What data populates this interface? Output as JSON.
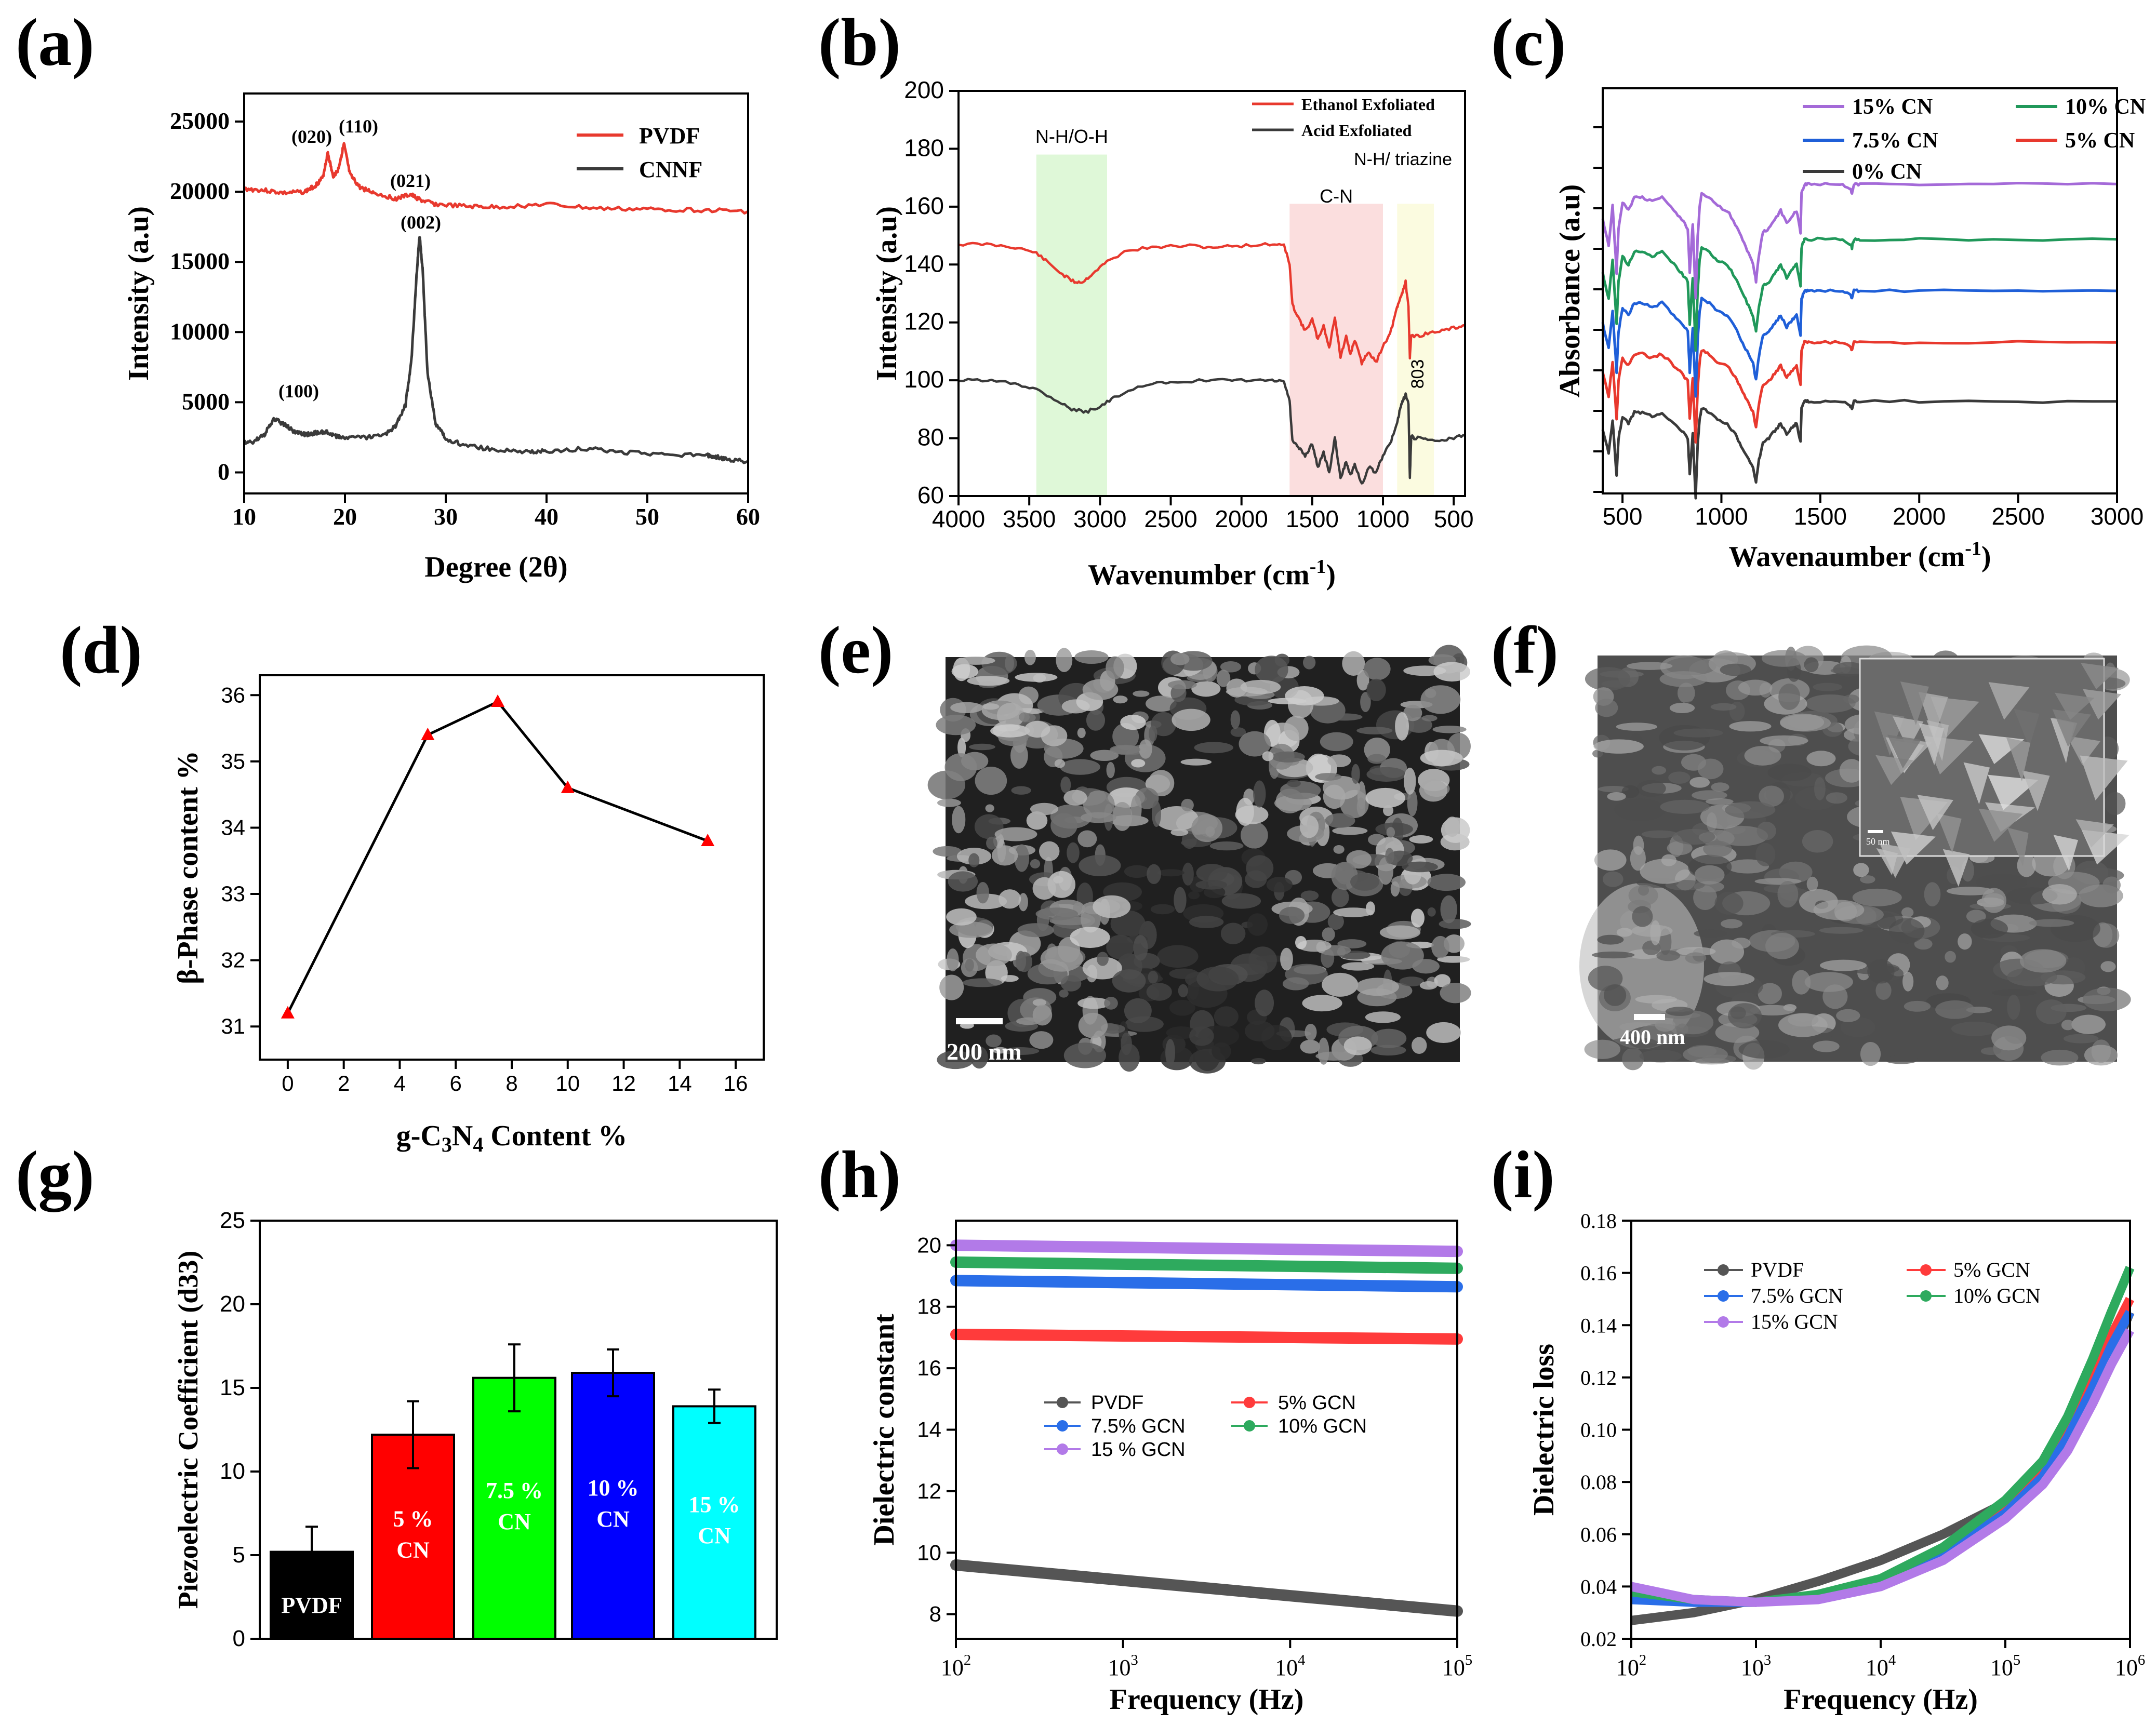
{
  "chart_data": [
    {
      "panel": "(a)",
      "type": "line",
      "xlabel": "Degree (2θ)",
      "ylabel": "Intensity (a.u)",
      "xlim": [
        10,
        60
      ],
      "ylim": [
        -1500,
        27000
      ],
      "xticks": [
        "10",
        "20",
        "30",
        "40",
        "50",
        "60"
      ],
      "yticks": [
        "0",
        "5000",
        "10000",
        "15000",
        "20000",
        "25000"
      ],
      "series": [
        {
          "name": "PVDF",
          "color": "#e8392e",
          "x": [
            10,
            12,
            14,
            16,
            17,
            17.8,
            18.3,
            18.8,
            19.3,
            19.9,
            20.5,
            21.5,
            23,
            25,
            26.5,
            27.5,
            29,
            32,
            35,
            40,
            45,
            50,
            55,
            60
          ],
          "y": [
            20200,
            20100,
            19900,
            20000,
            20400,
            21000,
            22800,
            21100,
            21500,
            23400,
            21200,
            20300,
            19900,
            19500,
            19800,
            19400,
            19100,
            18950,
            18900,
            19100,
            18800,
            18750,
            18700,
            18600
          ]
        },
        {
          "name": "CNNF",
          "color": "#3a3a3a",
          "x": [
            10,
            11,
            12,
            13,
            14,
            15,
            16,
            17,
            18,
            19,
            20,
            22,
            24,
            25,
            26,
            26.6,
            27.1,
            27.4,
            27.7,
            28.2,
            29,
            30,
            32,
            35,
            38,
            40,
            44,
            48,
            52,
            56,
            57,
            58,
            60
          ],
          "y": [
            2100,
            2200,
            2700,
            3800,
            3400,
            2900,
            2700,
            2800,
            2900,
            2600,
            2500,
            2500,
            2700,
            3300,
            4800,
            8000,
            14000,
            16900,
            14500,
            7000,
            3500,
            2400,
            1900,
            1600,
            1500,
            1500,
            1700,
            1400,
            1300,
            1200,
            1100,
            900,
            800
          ]
        }
      ],
      "annotations": [
        "(020)",
        "(110)",
        "(021)",
        "(002)",
        "(100)"
      ]
    },
    {
      "panel": "(b)",
      "type": "line",
      "xlabel": "Wavenumber (cm-1)",
      "ylabel": "Intensity (a.u)",
      "xlim": [
        4000,
        420
      ],
      "ylim": [
        60,
        200
      ],
      "xticks": [
        "4000",
        "3500",
        "3000",
        "2500",
        "2000",
        "1500",
        "1000",
        "500"
      ],
      "yticks": [
        "60",
        "80",
        "100",
        "120",
        "140",
        "160",
        "180",
        "200"
      ],
      "series": [
        {
          "name": "Ethanol Exfoliated",
          "color": "#e8392e",
          "x": [
            4000,
            3800,
            3600,
            3450,
            3350,
            3250,
            3180,
            3120,
            3050,
            2950,
            2800,
            2600,
            2400,
            2200,
            2000,
            1800,
            1700,
            1660,
            1640,
            1600,
            1550,
            1500,
            1460,
            1420,
            1380,
            1340,
            1300,
            1260,
            1230,
            1200,
            1150,
            1100,
            1050,
            1000,
            950,
            900,
            880,
            860,
            840,
            820,
            810,
            800,
            780,
            700,
            600,
            500,
            420
          ],
          "y": [
            147,
            147,
            146,
            144,
            140,
            136,
            134,
            134,
            137,
            141,
            145,
            146,
            146.5,
            146,
            146.5,
            147,
            147,
            140,
            126,
            122,
            117,
            121,
            114,
            119,
            111,
            122,
            108,
            115,
            109,
            114,
            106,
            110,
            106,
            112,
            116,
            125,
            128,
            131,
            134,
            125,
            108,
            116,
            115,
            116,
            117,
            118,
            119
          ]
        },
        {
          "name": "Acid Exfoliated",
          "color": "#3a3a3a",
          "x": [
            4000,
            3800,
            3600,
            3450,
            3300,
            3200,
            3100,
            3000,
            2900,
            2700,
            2500,
            2200,
            2000,
            1800,
            1700,
            1660,
            1640,
            1600,
            1550,
            1500,
            1460,
            1420,
            1380,
            1340,
            1300,
            1260,
            1230,
            1200,
            1150,
            1100,
            1050,
            1000,
            950,
            900,
            880,
            860,
            840,
            820,
            810,
            800,
            780,
            700,
            600,
            500,
            420
          ],
          "y": [
            100,
            100,
            99,
            97,
            93,
            90,
            89,
            91,
            94,
            98,
            99.5,
            100,
            100,
            100,
            99.5,
            93,
            79,
            77,
            74,
            78,
            70,
            75,
            68,
            80,
            66,
            72,
            67,
            71,
            64,
            70,
            68,
            74,
            78,
            85,
            90,
            93,
            95,
            92,
            66,
            81,
            80,
            80,
            79,
            80,
            81
          ]
        }
      ],
      "annotations": [
        "N-H/O-H",
        "C-N",
        "N-H/ triazine",
        "803"
      ]
    },
    {
      "panel": "(c)",
      "type": "line",
      "xlabel": "Wavenaumber (cm-1)",
      "ylabel": "Absorbance (a.u)",
      "xlim": [
        400,
        3000
      ],
      "ylim": [
        0,
        11
      ],
      "xticks": [
        "500",
        "1000",
        "1500",
        "2000",
        "2500",
        "3000"
      ],
      "series": [
        {
          "name": "0% CN",
          "color": "#3a3a3a",
          "offset": 2.5
        },
        {
          "name": "5% CN",
          "color": "#e8392e",
          "offset": 4.1
        },
        {
          "name": "7.5% CN",
          "color": "#1f5fd8",
          "offset": 5.5
        },
        {
          "name": "10% CN",
          "color": "#20985a",
          "offset": 6.9
        },
        {
          "name": "15% CN",
          "color": "#a46ad8",
          "offset": 8.4
        }
      ],
      "profile_x": [
        400,
        430,
        450,
        470,
        480,
        500,
        530,
        560,
        600,
        650,
        700,
        760,
        800,
        830,
        840,
        855,
        870,
        880,
        890,
        900,
        940,
        980,
        1030,
        1070,
        1100,
        1130,
        1160,
        1175,
        1190,
        1210,
        1240,
        1270,
        1300,
        1330,
        1360,
        1380,
        1400,
        1405,
        1420,
        1440,
        1500,
        1600,
        1650,
        1660,
        1670,
        1700,
        2000,
        2500,
        3000
      ],
      "profile_y": [
        -0.8,
        -1.4,
        -0.5,
        -2.0,
        -1.0,
        -0.4,
        -0.6,
        -0.3,
        -0.3,
        -0.4,
        -0.3,
        -0.6,
        -0.8,
        -1.0,
        -2.0,
        -0.9,
        -2.6,
        -1.2,
        -0.5,
        -0.2,
        -0.3,
        -0.5,
        -0.6,
        -0.9,
        -1.2,
        -1.5,
        -1.8,
        -2.2,
        -1.6,
        -1.1,
        -1.0,
        -0.8,
        -0.6,
        -0.9,
        -0.7,
        -0.6,
        -1.1,
        -0.2,
        0.0,
        0.0,
        0.0,
        0.0,
        -0.1,
        -0.2,
        0.0,
        0.0,
        0.0,
        0.0,
        0.0
      ]
    },
    {
      "panel": "(d)",
      "type": "line",
      "xlabel": "g-C3N4 Content %",
      "ylabel": "β-Phase content %",
      "xlim": [
        -1,
        17
      ],
      "ylim": [
        30.5,
        36.3
      ],
      "xticks": [
        "0",
        "2",
        "4",
        "6",
        "8",
        "10",
        "12",
        "14",
        "16"
      ],
      "yticks": [
        "31",
        "32",
        "33",
        "34",
        "35",
        "36"
      ],
      "x": [
        0,
        5,
        7.5,
        10,
        15
      ],
      "values": [
        31.2,
        35.4,
        35.9,
        34.6,
        33.8
      ]
    },
    {
      "panel": "(g)",
      "type": "bar",
      "ylabel": "Piezoelectric Coefficient (d33)",
      "ylim": [
        0,
        25
      ],
      "yticks": [
        "0",
        "5",
        "10",
        "15",
        "20",
        "25"
      ],
      "categories": [
        "PVDF",
        "5 % CN",
        "7.5 % CN",
        "10 % CN",
        "15 % CN"
      ],
      "values": [
        5.2,
        12.2,
        15.6,
        15.9,
        13.9
      ],
      "errors": [
        1.5,
        2.0,
        2.0,
        1.4,
        1.0
      ],
      "colors": [
        "#000000",
        "#ff0000",
        "#00ff00",
        "#0000ff",
        "#00ffff"
      ]
    },
    {
      "panel": "(h)",
      "type": "scatter",
      "xlabel": "Frequency (Hz)",
      "ylabel": "Dielectric constant",
      "xlim": [
        100,
        100000
      ],
      "ylim": [
        7.2,
        20.8
      ],
      "yticks": [
        "8",
        "10",
        "12",
        "14",
        "16",
        "18",
        "20"
      ],
      "series": [
        {
          "name": "PVDF",
          "color": "#555555",
          "x": [
            100,
            100000
          ],
          "values": [
            9.6,
            8.1
          ]
        },
        {
          "name": "5% GCN",
          "color": "#ff3b3b",
          "x": [
            100,
            100000
          ],
          "values": [
            17.1,
            16.95
          ]
        },
        {
          "name": "7.5% GCN",
          "color": "#2a6ee8",
          "x": [
            100,
            100000
          ],
          "values": [
            18.85,
            18.65
          ]
        },
        {
          "name": "10% GCN",
          "color": "#2eaa5e",
          "x": [
            100,
            100000
          ],
          "values": [
            19.45,
            19.25
          ]
        },
        {
          "name": "15 % GCN",
          "color": "#b27ae8",
          "x": [
            100,
            100000
          ],
          "values": [
            20.0,
            19.8
          ]
        }
      ]
    },
    {
      "panel": "(i)",
      "type": "scatter",
      "xlabel": "Frequency (Hz)",
      "ylabel": "Dielectric loss",
      "xlim": [
        100,
        1000000
      ],
      "ylim": [
        0.02,
        0.18
      ],
      "yticks": [
        "0.02",
        "0.04",
        "0.06",
        "0.08",
        "0.10",
        "0.12",
        "0.14",
        "0.16",
        "0.18"
      ],
      "log_x": [
        2,
        2.5,
        3,
        3.5,
        4,
        4.5,
        5,
        5.3,
        5.5,
        5.7,
        5.85,
        6
      ],
      "series": [
        {
          "name": "PVDF",
          "color": "#555555",
          "values": [
            0.027,
            0.03,
            0.035,
            0.042,
            0.05,
            0.06,
            0.072,
            0.083,
            0.095,
            0.112,
            0.128,
            0.145
          ]
        },
        {
          "name": "5% GCN",
          "color": "#ff3b3b",
          "values": [
            0.036,
            0.034,
            0.034,
            0.036,
            0.042,
            0.054,
            0.071,
            0.085,
            0.1,
            0.12,
            0.136,
            0.15
          ]
        },
        {
          "name": "7.5% GCN",
          "color": "#2a6ee8",
          "values": [
            0.035,
            0.034,
            0.034,
            0.036,
            0.041,
            0.052,
            0.068,
            0.082,
            0.097,
            0.116,
            0.132,
            0.145
          ]
        },
        {
          "name": "10% GCN",
          "color": "#2eaa5e",
          "values": [
            0.038,
            0.035,
            0.034,
            0.037,
            0.043,
            0.055,
            0.073,
            0.088,
            0.105,
            0.127,
            0.145,
            0.162
          ]
        },
        {
          "name": "15% GCN",
          "color": "#b27ae8",
          "values": [
            0.04,
            0.035,
            0.034,
            0.035,
            0.04,
            0.05,
            0.066,
            0.079,
            0.092,
            0.11,
            0.125,
            0.138
          ]
        }
      ]
    }
  ],
  "panel_letters": [
    "(a)",
    "(b)",
    "(c)",
    "(d)",
    "(e)",
    "(f)",
    "(g)",
    "(h)",
    "(i)"
  ],
  "sem": {
    "e_scale": "200 nm",
    "f_scale": "400 nm",
    "f_inset_scale": "50 nm"
  }
}
